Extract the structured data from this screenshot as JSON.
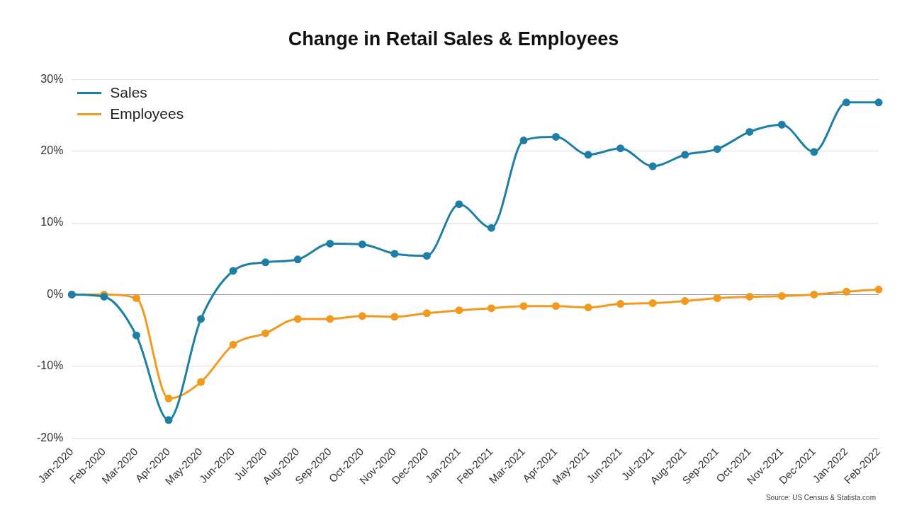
{
  "chart_data": {
    "type": "line",
    "title": "Change in Retail Sales & Employees",
    "annotations": [
      "Source: US Census & Statista.com"
    ],
    "categories": [
      "Jan-2020",
      "Feb-2020",
      "Mar-2020",
      "Apr-2020",
      "May-2020",
      "Jun-2020",
      "Jul-2020",
      "Aug-2020",
      "Sep-2020",
      "Oct-2020",
      "Nov-2020",
      "Dec-2020",
      "Jan-2021",
      "Feb-2021",
      "Mar-2021",
      "Apr-2021",
      "May-2021",
      "Jun-2021",
      "Jul-2021",
      "Aug-2021",
      "Sep-2021",
      "Oct-2021",
      "Nov-2021",
      "Dec-2021",
      "Jan-2022",
      "Feb-2022"
    ],
    "series": [
      {
        "name": "Sales",
        "color": "#1d7fa6",
        "values": [
          0,
          -0.3,
          -5.7,
          -17.5,
          -3.4,
          3.3,
          4.5,
          4.9,
          7.1,
          7.0,
          5.7,
          5.4,
          12.6,
          9.3,
          21.5,
          22.0,
          19.5,
          20.4,
          17.9,
          19.5,
          20.3,
          22.7,
          23.7,
          19.9,
          26.8,
          26.8
        ]
      },
      {
        "name": "Employees",
        "color": "#f39a1e",
        "values": [
          0,
          0,
          -0.5,
          -14.5,
          -12.2,
          -7.0,
          -5.4,
          -3.4,
          -3.4,
          -3.0,
          -3.1,
          -2.6,
          -2.2,
          -1.9,
          -1.6,
          -1.6,
          -1.8,
          -1.3,
          -1.2,
          -0.9,
          -0.5,
          -0.3,
          -0.2,
          0,
          0.4,
          0.7
        ]
      }
    ],
    "ylim": [
      -20,
      30
    ],
    "yticks": [
      {
        "value": -20,
        "label": "-20%"
      },
      {
        "value": -10,
        "label": "-10%"
      },
      {
        "value": 0,
        "label": "0%"
      },
      {
        "value": 10,
        "label": "10%"
      },
      {
        "value": 20,
        "label": "20%"
      },
      {
        "value": 30,
        "label": "30%"
      }
    ],
    "grid": true,
    "legend": "top-left",
    "marker": "circle",
    "line_style": "solid"
  }
}
